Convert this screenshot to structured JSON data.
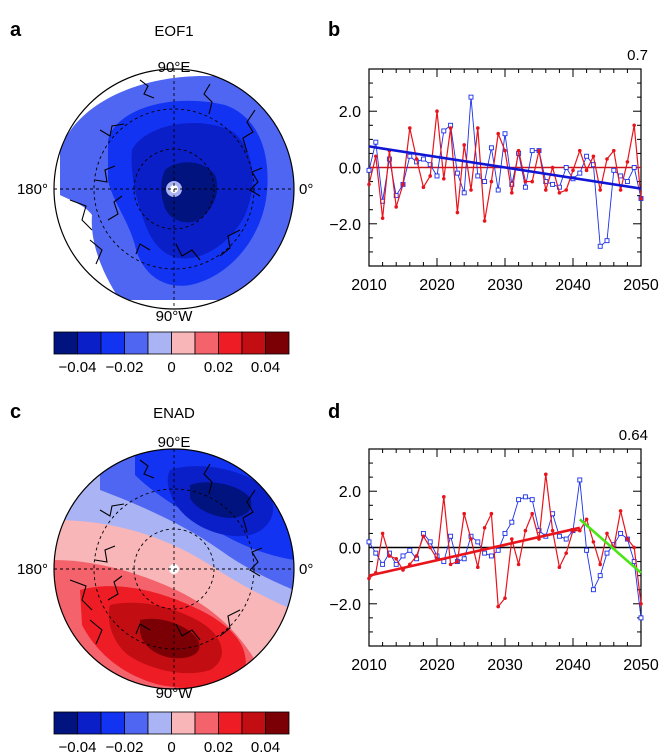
{
  "colors": {
    "neg5": "#00137f",
    "neg4": "#0b1fc8",
    "neg3": "#1233f2",
    "neg2": "#4f66f2",
    "neg1": "#aab4f4",
    "pos1": "#f8b6b9",
    "pos2": "#f4626b",
    "pos3": "#ee1c25",
    "pos4": "#c20d12",
    "pos5": "#7b0006",
    "blue_series": "#1b30e8",
    "red_series": "#e8141c",
    "trend_b": "#1016d4",
    "trend_d_red": "#e8141c",
    "trend_d_green": "#49e615",
    "zero_line_b": "#c8141c",
    "zero_line_d": "#000000"
  },
  "panels": {
    "a": {
      "letter": "a",
      "title": "EOF1",
      "label_top": "90°E",
      "label_bottom": "90°W",
      "label_left": "180°",
      "label_right": "0°"
    },
    "b": {
      "letter": "b",
      "corr": "0.7"
    },
    "c": {
      "letter": "c",
      "title": "ENAD",
      "label_top": "90°E",
      "label_bottom": "90°W",
      "label_left": "180°",
      "label_right": "0°"
    },
    "d": {
      "letter": "d",
      "corr": "0.64"
    }
  },
  "colorbar": {
    "ticks": [
      "−0.04",
      "−0.02",
      "0",
      "0.02",
      "0.04"
    ]
  },
  "chart_data": [
    {
      "type": "line",
      "panel": "b",
      "xlim": [
        2010,
        2050
      ],
      "ylim": [
        -3.5,
        3.5
      ],
      "x_ticks": [
        "2010",
        "2020",
        "2030",
        "2040",
        "2050"
      ],
      "y_ticks": [
        "2.0",
        "0.0",
        "−2.0"
      ],
      "x": [
        2010,
        2011,
        2012,
        2013,
        2014,
        2015,
        2016,
        2017,
        2018,
        2019,
        2020,
        2021,
        2022,
        2023,
        2024,
        2025,
        2026,
        2027,
        2028,
        2029,
        2030,
        2031,
        2032,
        2033,
        2034,
        2035,
        2036,
        2037,
        2038,
        2039,
        2040,
        2041,
        2042,
        2043,
        2044,
        2045,
        2046,
        2047,
        2048,
        2049,
        2050
      ],
      "series": [
        {
          "values": [
            -0.1,
            0.9,
            -1.2,
            0.3,
            -1.0,
            -0.6,
            0.4,
            0.2,
            0.3,
            0.1,
            -0.3,
            1.3,
            1.5,
            -0.2,
            -0.9,
            2.5,
            -0.3,
            -0.5,
            0.7,
            -0.8,
            1.2,
            -0.6,
            0.5,
            -0.7,
            0.6,
            0.6,
            -0.5,
            -0.6,
            -0.7,
            0.0,
            -0.4,
            -0.2,
            0.4,
            0.1,
            -2.8,
            -2.6,
            -0.1,
            -0.3,
            -0.5,
            0.0,
            -1.1
          ]
        },
        {
          "values": [
            -0.6,
            0.4,
            -1.8,
            0.6,
            -1.4,
            -0.6,
            1.4,
            0.3,
            -0.7,
            -0.3,
            2.0,
            -0.4,
            1.4,
            -1.6,
            0.8,
            -0.8,
            1.4,
            -1.9,
            -0.5,
            1.2,
            0.6,
            -0.9,
            0.6,
            -0.5,
            -0.5,
            0.6,
            -0.8,
            0.0,
            -0.9,
            -0.8,
            -0.1,
            0.6,
            -0.1,
            0.4,
            -0.8,
            0.3,
            0.6,
            -0.8,
            0.2,
            1.5,
            -1.1
          ]
        }
      ],
      "trend_lines": [
        {
          "x": [
            2010,
            2050
          ],
          "y": [
            0.75,
            -0.75
          ]
        }
      ]
    },
    {
      "type": "line",
      "panel": "d",
      "xlim": [
        2010,
        2050
      ],
      "ylim": [
        -3.5,
        3.5
      ],
      "x_ticks": [
        "2010",
        "2020",
        "2030",
        "2040",
        "2050"
      ],
      "y_ticks": [
        "2.0",
        "0.0",
        "−2.0"
      ],
      "x": [
        2010,
        2011,
        2012,
        2013,
        2014,
        2015,
        2016,
        2017,
        2018,
        2019,
        2020,
        2021,
        2022,
        2023,
        2024,
        2025,
        2026,
        2027,
        2028,
        2029,
        2030,
        2031,
        2032,
        2033,
        2034,
        2035,
        2036,
        2037,
        2038,
        2039,
        2040,
        2041,
        2042,
        2043,
        2044,
        2045,
        2046,
        2047,
        2048,
        2049,
        2050
      ],
      "series": [
        {
          "values": [
            0.2,
            -0.2,
            -0.6,
            -0.2,
            -0.6,
            -0.3,
            -0.1,
            -0.4,
            0.5,
            0.2,
            -0.3,
            -0.5,
            0.4,
            -0.5,
            -0.4,
            0.4,
            0.2,
            -0.2,
            -0.3,
            -0.1,
            0.5,
            0.9,
            1.7,
            1.8,
            1.7,
            0.6,
            0.4,
            1.2,
            0.4,
            0.3,
            0.6,
            2.4,
            -0.1,
            -1.5,
            -1.0,
            -0.2,
            0.1,
            0.5,
            0.3,
            -0.5,
            -2.5
          ]
        },
        {
          "values": [
            -1.1,
            -0.9,
            0.5,
            -0.3,
            -0.4,
            -0.8,
            -0.6,
            -0.3,
            0.4,
            0.0,
            -0.4,
            1.8,
            -0.6,
            -0.5,
            1.2,
            0.3,
            -0.7,
            0.7,
            1.2,
            -2.1,
            -1.8,
            0.3,
            -0.6,
            0.6,
            1.2,
            0.3,
            2.6,
            0.6,
            -0.7,
            -0.2,
            0.6,
            0.6,
            1.0,
            0.2,
            -0.6,
            0.5,
            0.0,
            1.3,
            0.3,
            0.0,
            -2.0
          ]
        }
      ],
      "trend_lines": [
        {
          "x": [
            2010,
            2041
          ],
          "y": [
            -1.0,
            0.7
          ]
        },
        {
          "x": [
            2041,
            2050
          ],
          "y": [
            1.0,
            -0.9
          ]
        }
      ]
    }
  ]
}
